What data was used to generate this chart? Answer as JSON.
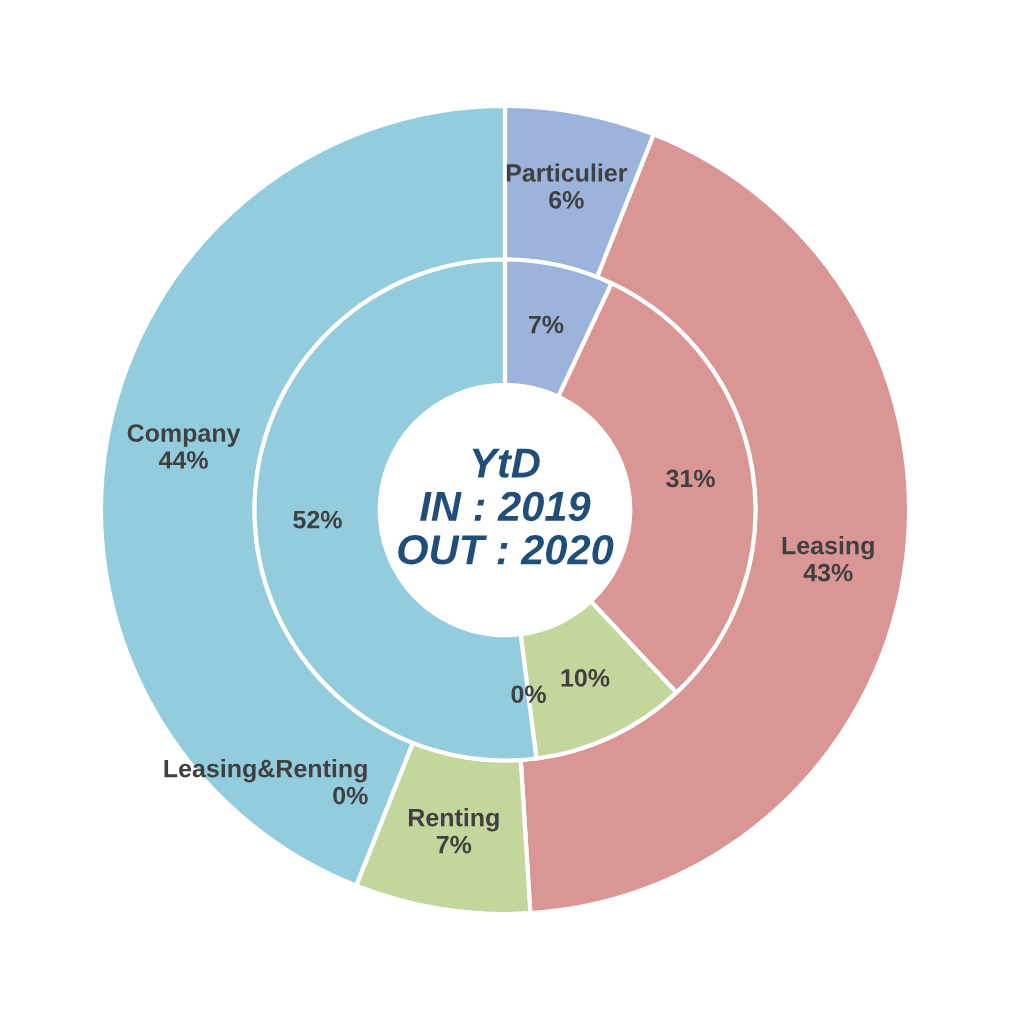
{
  "chart_data": {
    "type": "donut",
    "title": "YtD\nIN : 2019\nOUT : 2020",
    "categories": [
      "Particulier",
      "Leasing",
      "Renting",
      "Leasing&Renting",
      "Company"
    ],
    "colors": [
      "#9cb4dc",
      "#d99694",
      "#c3d69b",
      "#b7a8d0",
      "#93cddd"
    ],
    "series": [
      {
        "values": [
          6,
          43,
          7,
          0,
          44
        ],
        "value_labels": [
          "6%",
          "43%",
          "7%",
          "0%",
          "44%"
        ]
      },
      {
        "values": [
          7,
          31,
          10,
          0,
          52
        ],
        "value_labels": [
          "7%",
          "31%",
          "10%",
          "0%",
          "52%"
        ]
      }
    ],
    "legend": false
  }
}
